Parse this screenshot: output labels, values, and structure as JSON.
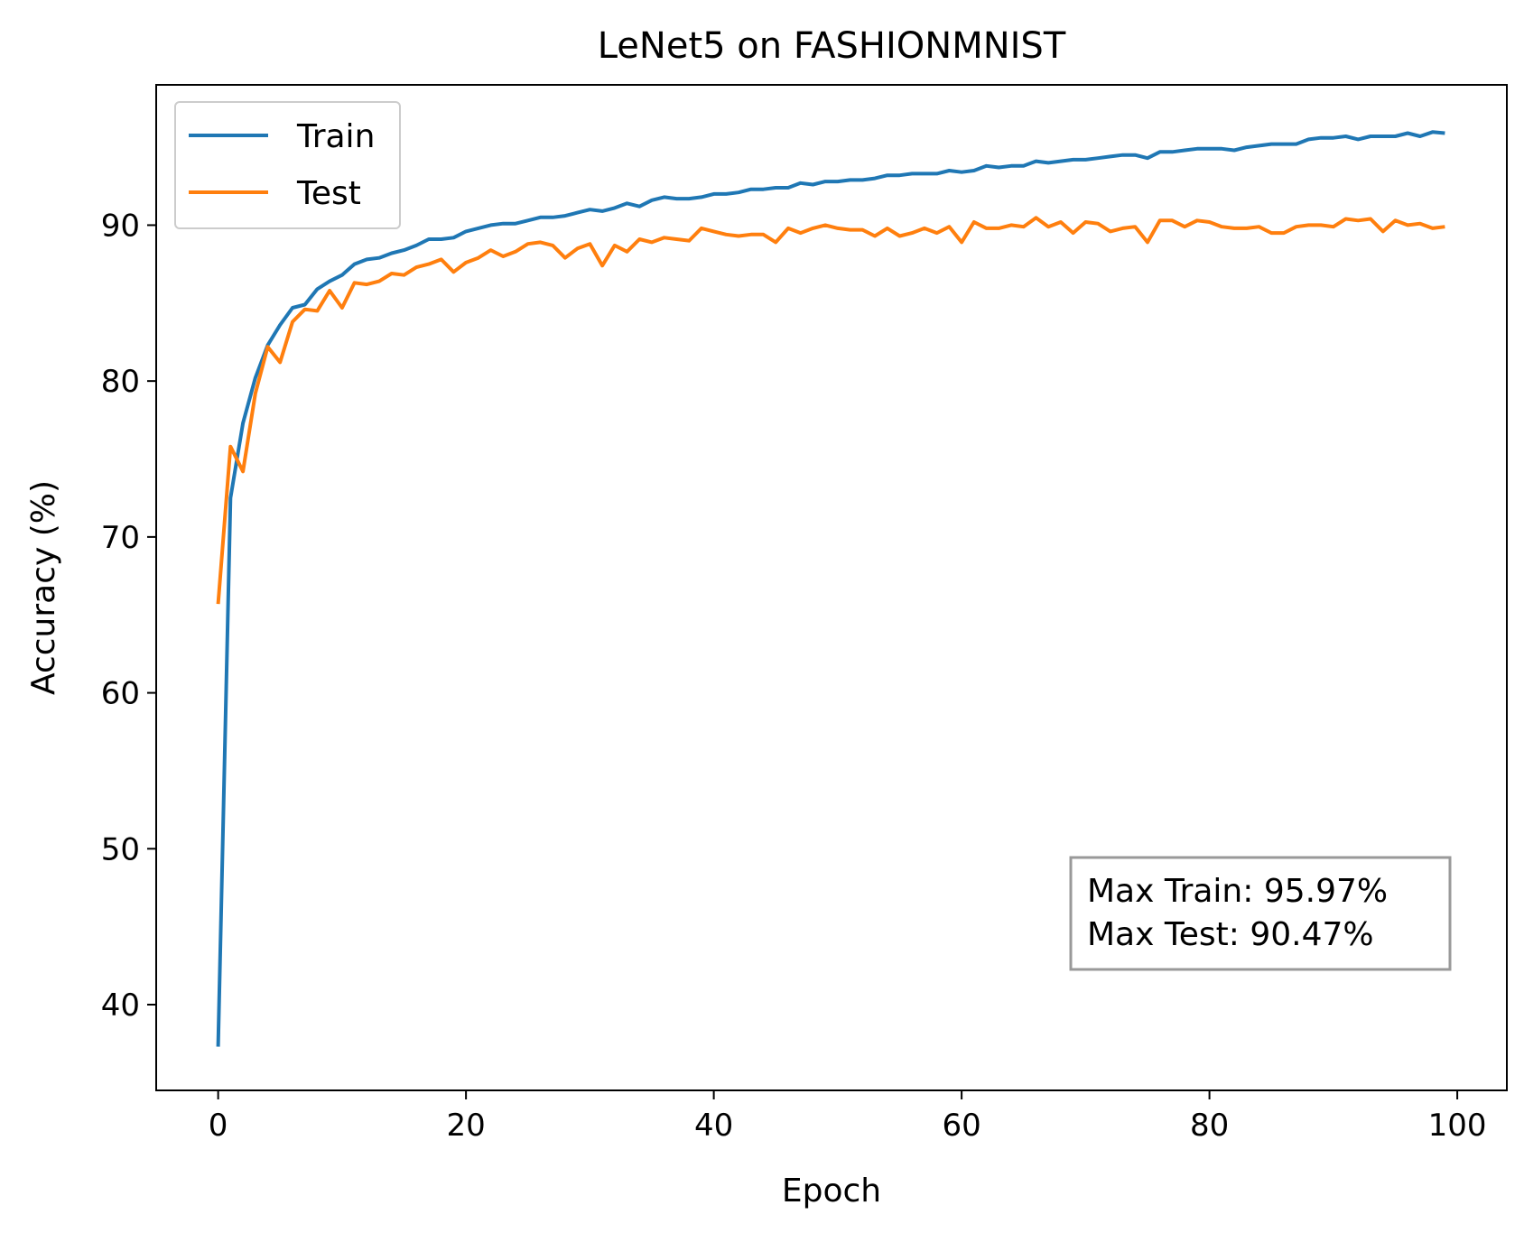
{
  "chart_data": {
    "type": "line",
    "title": "LeNet5 on FASHIONMNIST",
    "xlabel": "Epoch",
    "ylabel": "Accuracy (%)",
    "xlim": [
      -5,
      104
    ],
    "ylim": [
      34.5,
      99
    ],
    "xticks": [
      0,
      20,
      40,
      60,
      80,
      100
    ],
    "yticks": [
      40,
      50,
      60,
      70,
      80,
      90
    ],
    "grid": false,
    "legend_position": "upper-left",
    "annotation": {
      "lines": [
        "Max Train: 95.97%",
        "Max Test: 90.47%"
      ],
      "position": "lower-right"
    },
    "series": [
      {
        "name": "Train",
        "color": "#1f77b4",
        "x": [
          0,
          1,
          2,
          3,
          4,
          5,
          6,
          7,
          8,
          9,
          10,
          11,
          12,
          13,
          14,
          15,
          16,
          17,
          18,
          19,
          20,
          21,
          22,
          23,
          24,
          25,
          26,
          27,
          28,
          29,
          30,
          31,
          32,
          33,
          34,
          35,
          36,
          37,
          38,
          39,
          40,
          41,
          42,
          43,
          44,
          45,
          46,
          47,
          48,
          49,
          50,
          51,
          52,
          53,
          54,
          55,
          56,
          57,
          58,
          59,
          60,
          61,
          62,
          63,
          64,
          65,
          66,
          67,
          68,
          69,
          70,
          71,
          72,
          73,
          74,
          75,
          76,
          77,
          78,
          79,
          80,
          81,
          82,
          83,
          84,
          85,
          86,
          87,
          88,
          89,
          90,
          91,
          92,
          93,
          94,
          95,
          96,
          97,
          98,
          99
        ],
        "values": [
          37.3,
          72.5,
          77.3,
          80.2,
          82.3,
          83.6,
          84.7,
          84.9,
          85.9,
          86.4,
          86.8,
          87.5,
          87.8,
          87.9,
          88.2,
          88.4,
          88.7,
          89.1,
          89.1,
          89.2,
          89.6,
          89.8,
          90.0,
          90.1,
          90.1,
          90.3,
          90.5,
          90.5,
          90.6,
          90.8,
          91.0,
          90.9,
          91.1,
          91.4,
          91.2,
          91.6,
          91.8,
          91.7,
          91.7,
          91.8,
          92.0,
          92.0,
          92.1,
          92.3,
          92.3,
          92.4,
          92.4,
          92.7,
          92.6,
          92.8,
          92.8,
          92.9,
          92.9,
          93.0,
          93.2,
          93.2,
          93.3,
          93.3,
          93.3,
          93.5,
          93.4,
          93.5,
          93.8,
          93.7,
          93.8,
          93.8,
          94.1,
          94.0,
          94.1,
          94.2,
          94.2,
          94.3,
          94.4,
          94.5,
          94.5,
          94.3,
          94.7,
          94.7,
          94.8,
          94.9,
          94.9,
          94.9,
          94.8,
          95.0,
          95.1,
          95.2,
          95.2,
          95.2,
          95.5,
          95.6,
          95.6,
          95.7,
          95.5,
          95.7,
          95.7,
          95.7,
          95.9,
          95.7,
          95.97,
          95.9
        ]
      },
      {
        "name": "Test",
        "color": "#ff7f0e",
        "x": [
          0,
          1,
          2,
          3,
          4,
          5,
          6,
          7,
          8,
          9,
          10,
          11,
          12,
          13,
          14,
          15,
          16,
          17,
          18,
          19,
          20,
          21,
          22,
          23,
          24,
          25,
          26,
          27,
          28,
          29,
          30,
          31,
          32,
          33,
          34,
          35,
          36,
          37,
          38,
          39,
          40,
          41,
          42,
          43,
          44,
          45,
          46,
          47,
          48,
          49,
          50,
          51,
          52,
          53,
          54,
          55,
          56,
          57,
          58,
          59,
          60,
          61,
          62,
          63,
          64,
          65,
          66,
          67,
          68,
          69,
          70,
          71,
          72,
          73,
          74,
          75,
          76,
          77,
          78,
          79,
          80,
          81,
          82,
          83,
          84,
          85,
          86,
          87,
          88,
          89,
          90,
          91,
          92,
          93,
          94,
          95,
          96,
          97,
          98,
          99
        ],
        "values": [
          65.7,
          75.8,
          74.2,
          79.2,
          82.2,
          81.2,
          83.8,
          84.6,
          84.5,
          85.8,
          84.7,
          86.3,
          86.2,
          86.4,
          86.9,
          86.8,
          87.3,
          87.5,
          87.8,
          87.0,
          87.6,
          87.9,
          88.4,
          88.0,
          88.3,
          88.8,
          88.9,
          88.7,
          87.9,
          88.5,
          88.8,
          87.4,
          88.7,
          88.3,
          89.1,
          88.9,
          89.2,
          89.1,
          89.0,
          89.8,
          89.6,
          89.4,
          89.3,
          89.4,
          89.4,
          88.9,
          89.8,
          89.5,
          89.8,
          90.0,
          89.8,
          89.7,
          89.7,
          89.3,
          89.8,
          89.3,
          89.5,
          89.8,
          89.5,
          89.9,
          88.9,
          90.2,
          89.8,
          89.8,
          90.0,
          89.9,
          90.47,
          89.9,
          90.2,
          89.5,
          90.2,
          90.1,
          89.6,
          89.8,
          89.9,
          88.9,
          90.3,
          90.3,
          89.9,
          90.3,
          90.2,
          89.9,
          89.8,
          89.8,
          89.9,
          89.5,
          89.5,
          89.9,
          90.0,
          90.0,
          89.9,
          90.4,
          90.3,
          90.4,
          89.6,
          90.3,
          90.0,
          90.1,
          89.8,
          89.9
        ]
      }
    ]
  }
}
